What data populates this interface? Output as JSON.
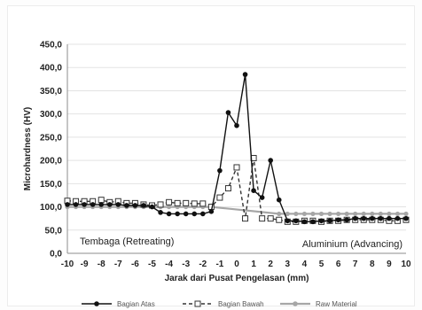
{
  "chart_data": {
    "type": "line",
    "xlabel": "Jarak dari Pusat Pengelasan (mm)",
    "ylabel": "Microhardness (HV)",
    "ylim": [
      0,
      450
    ],
    "yticks": [
      0,
      50,
      100,
      150,
      200,
      250,
      300,
      350,
      400,
      450
    ],
    "ytick_labels": [
      "0,0",
      "50,0",
      "100,0",
      "150,0",
      "200,0",
      "250,0",
      "300,0",
      "350,0",
      "400,0",
      "450,0"
    ],
    "xlim": [
      -10,
      10
    ],
    "xticks": [
      -10,
      -9,
      -8,
      -7,
      -6,
      -5,
      -4,
      -3,
      -2,
      -1,
      0,
      1,
      2,
      3,
      4,
      5,
      6,
      7,
      8,
      9,
      10
    ],
    "xtick_labels": [
      "-10",
      "-9",
      "-8",
      "-7",
      "-6",
      "-5",
      "-4",
      "-3",
      "-2",
      "-1",
      "0",
      "1",
      "2",
      "3",
      "4",
      "5",
      "6",
      "7",
      "8",
      "9",
      "10"
    ],
    "grid": "horizontal",
    "legend_position": "bottom",
    "annotations": [
      {
        "id": "left",
        "text": "Tembaga (Retreating)"
      },
      {
        "id": "right",
        "text": "Aluminium (Advancing)"
      }
    ],
    "series": [
      {
        "name": "Raw Material",
        "color": "#a6a6a6",
        "marker": "circle",
        "line": "solid",
        "points": [
          [
            -10,
            100
          ],
          [
            -9.5,
            100
          ],
          [
            -9,
            100
          ],
          [
            -8.5,
            100
          ],
          [
            -8,
            100
          ],
          [
            -7.5,
            100
          ],
          [
            -7,
            100
          ],
          [
            -6.5,
            100
          ],
          [
            -6,
            100
          ],
          [
            -5.5,
            100
          ],
          [
            -5,
            100
          ],
          [
            -4.5,
            100
          ],
          [
            -4,
            100
          ],
          [
            -3.5,
            100
          ],
          [
            -3,
            100
          ],
          [
            -2.5,
            100
          ],
          [
            -2,
            100
          ],
          [
            -1.5,
            100
          ],
          [
            2.5,
            85
          ],
          [
            3,
            85
          ],
          [
            3.5,
            85
          ],
          [
            4,
            85
          ],
          [
            4.5,
            85
          ],
          [
            5,
            85
          ],
          [
            5.5,
            85
          ],
          [
            6,
            85
          ],
          [
            6.5,
            85
          ],
          [
            7,
            85
          ],
          [
            7.5,
            85
          ],
          [
            8,
            85
          ],
          [
            8.5,
            85
          ],
          [
            9,
            85
          ],
          [
            9.5,
            85
          ],
          [
            10,
            85
          ]
        ]
      },
      {
        "name": "Bagian Bawah",
        "color": "#333333",
        "marker": "square-open",
        "line": "dashed",
        "points": [
          [
            -10,
            113
          ],
          [
            -9.5,
            112
          ],
          [
            -9,
            112
          ],
          [
            -8.5,
            112
          ],
          [
            -8,
            115
          ],
          [
            -7.5,
            110
          ],
          [
            -7,
            112
          ],
          [
            -6.5,
            108
          ],
          [
            -6,
            108
          ],
          [
            -5.5,
            105
          ],
          [
            -5,
            103
          ],
          [
            -4.5,
            105
          ],
          [
            -4,
            110
          ],
          [
            -3.5,
            108
          ],
          [
            -3,
            108
          ],
          [
            -2.5,
            107
          ],
          [
            -2,
            107
          ],
          [
            -1.5,
            100
          ],
          [
            -1,
            120
          ],
          [
            -0.5,
            140
          ],
          [
            0,
            185
          ],
          [
            0.5,
            75
          ],
          [
            1,
            205
          ],
          [
            1.5,
            75
          ],
          [
            2,
            75
          ],
          [
            2.5,
            72
          ],
          [
            3,
            68
          ],
          [
            3.5,
            68
          ],
          [
            4,
            70
          ],
          [
            4.5,
            70
          ],
          [
            5,
            68
          ],
          [
            5.5,
            70
          ],
          [
            6,
            70
          ],
          [
            6.5,
            72
          ],
          [
            7,
            72
          ],
          [
            7.5,
            72
          ],
          [
            8,
            72
          ],
          [
            8.5,
            72
          ],
          [
            9,
            70
          ],
          [
            9.5,
            70
          ],
          [
            10,
            72
          ]
        ]
      },
      {
        "name": "Bagian Atas",
        "color": "#111111",
        "marker": "circle",
        "line": "solid",
        "points": [
          [
            -10,
            105
          ],
          [
            -9.5,
            105
          ],
          [
            -9,
            105
          ],
          [
            -8.5,
            105
          ],
          [
            -8,
            105
          ],
          [
            -7.5,
            105
          ],
          [
            -7,
            105
          ],
          [
            -6.5,
            103
          ],
          [
            -6,
            103
          ],
          [
            -5.5,
            103
          ],
          [
            -5,
            100
          ],
          [
            -4.5,
            88
          ],
          [
            -4,
            85
          ],
          [
            -3.5,
            85
          ],
          [
            -3,
            85
          ],
          [
            -2.5,
            85
          ],
          [
            -2,
            85
          ],
          [
            -1.5,
            90
          ],
          [
            -1,
            178
          ],
          [
            -0.5,
            303
          ],
          [
            0,
            275
          ],
          [
            0.5,
            385
          ],
          [
            1,
            135
          ],
          [
            1.5,
            120
          ],
          [
            2,
            200
          ],
          [
            2.5,
            115
          ],
          [
            3,
            70
          ],
          [
            3.5,
            70
          ],
          [
            4,
            68
          ],
          [
            4.5,
            68
          ],
          [
            5,
            70
          ],
          [
            5.5,
            70
          ],
          [
            6,
            72
          ],
          [
            6.5,
            72
          ],
          [
            7,
            75
          ],
          [
            7.5,
            75
          ],
          [
            8,
            75
          ],
          [
            8.5,
            75
          ],
          [
            9,
            75
          ],
          [
            9.5,
            75
          ],
          [
            10,
            75
          ]
        ]
      }
    ],
    "legend_order": [
      "Bagian Atas",
      "Bagian Bawah",
      "Raw Material"
    ]
  }
}
